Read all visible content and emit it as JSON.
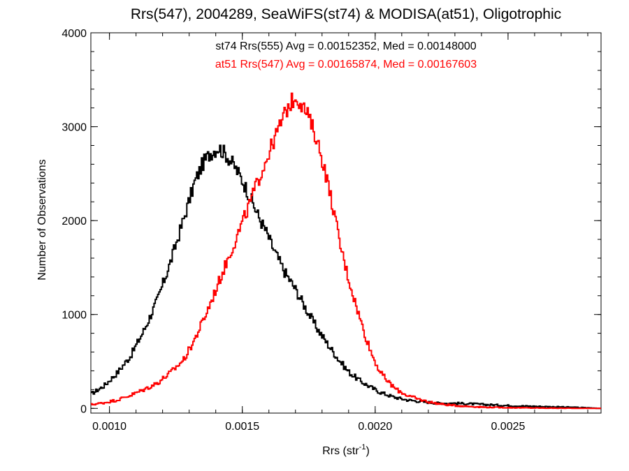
{
  "chart_data": {
    "type": "line",
    "title": "Rrs(547), 2004289, SeaWiFS(st74) & MODISA(at51), Oligotrophic",
    "xlabel": "Rrs (str",
    "xlabel_sup": "-1",
    "xlabel_end": ")",
    "ylabel": "Number of Observations",
    "xlim": [
      0.00093,
      0.00285
    ],
    "ylim": [
      -50,
      4000
    ],
    "xticks": [
      0.001,
      0.0015,
      0.002,
      0.0025
    ],
    "xtick_labels": [
      "0.0010",
      "0.0015",
      "0.0020",
      "0.0025"
    ],
    "yticks": [
      0,
      1000,
      2000,
      3000,
      4000
    ],
    "ytick_labels": [
      "0",
      "1000",
      "2000",
      "3000",
      "4000"
    ],
    "grid": false,
    "series": [
      {
        "name": "st74",
        "color": "#000000",
        "annotation": "st74 Rrs(555) Avg = 0.00152352, Med = 0.00148000",
        "points": [
          [
            0.00093,
            150
          ],
          [
            0.00098,
            240
          ],
          [
            0.00103,
            380
          ],
          [
            0.00108,
            560
          ],
          [
            0.00113,
            830
          ],
          [
            0.00118,
            1150
          ],
          [
            0.00123,
            1560
          ],
          [
            0.00128,
            2020
          ],
          [
            0.00132,
            2400
          ],
          [
            0.00135,
            2600
          ],
          [
            0.00138,
            2720
          ],
          [
            0.00141,
            2780
          ],
          [
            0.00144,
            2700
          ],
          [
            0.00147,
            2580
          ],
          [
            0.0015,
            2430
          ],
          [
            0.00153,
            2250
          ],
          [
            0.00156,
            2050
          ],
          [
            0.00159,
            1880
          ],
          [
            0.00162,
            1680
          ],
          [
            0.00166,
            1450
          ],
          [
            0.0017,
            1270
          ],
          [
            0.00174,
            1060
          ],
          [
            0.00178,
            860
          ],
          [
            0.00182,
            690
          ],
          [
            0.00186,
            530
          ],
          [
            0.0019,
            390
          ],
          [
            0.00194,
            300
          ],
          [
            0.00198,
            230
          ],
          [
            0.00202,
            170
          ],
          [
            0.00207,
            120
          ],
          [
            0.00212,
            90
          ],
          [
            0.00218,
            70
          ],
          [
            0.00224,
            55
          ],
          [
            0.0023,
            55
          ],
          [
            0.00236,
            48
          ],
          [
            0.00242,
            40
          ],
          [
            0.00248,
            32
          ],
          [
            0.00255,
            25
          ],
          [
            0.00262,
            20
          ],
          [
            0.0027,
            14
          ],
          [
            0.00278,
            8
          ],
          [
            0.00285,
            0
          ]
        ]
      },
      {
        "name": "at51",
        "color": "#ff0000",
        "annotation": "at51 Rrs(547) Avg = 0.00165874, Med = 0.00167603",
        "points": [
          [
            0.00093,
            40
          ],
          [
            0.00098,
            60
          ],
          [
            0.00103,
            90
          ],
          [
            0.00108,
            140
          ],
          [
            0.00113,
            200
          ],
          [
            0.00118,
            270
          ],
          [
            0.00123,
            380
          ],
          [
            0.00128,
            520
          ],
          [
            0.00132,
            730
          ],
          [
            0.00136,
            980
          ],
          [
            0.0014,
            1260
          ],
          [
            0.00144,
            1550
          ],
          [
            0.00148,
            1830
          ],
          [
            0.00152,
            2120
          ],
          [
            0.00156,
            2430
          ],
          [
            0.0016,
            2720
          ],
          [
            0.00164,
            3000
          ],
          [
            0.00167,
            3200
          ],
          [
            0.0017,
            3320
          ],
          [
            0.00172,
            3260
          ],
          [
            0.00175,
            3100
          ],
          [
            0.00178,
            2870
          ],
          [
            0.00181,
            2550
          ],
          [
            0.00184,
            2160
          ],
          [
            0.00187,
            1720
          ],
          [
            0.0019,
            1380
          ],
          [
            0.00193,
            1080
          ],
          [
            0.00196,
            800
          ],
          [
            0.00199,
            560
          ],
          [
            0.00202,
            380
          ],
          [
            0.00205,
            280
          ],
          [
            0.00208,
            200
          ],
          [
            0.00212,
            140
          ],
          [
            0.00216,
            100
          ],
          [
            0.0022,
            70
          ],
          [
            0.00225,
            45
          ],
          [
            0.0023,
            30
          ],
          [
            0.00236,
            20
          ],
          [
            0.00242,
            12
          ],
          [
            0.0025,
            8
          ],
          [
            0.0026,
            4
          ],
          [
            0.0027,
            2
          ],
          [
            0.00285,
            0
          ]
        ]
      }
    ]
  }
}
